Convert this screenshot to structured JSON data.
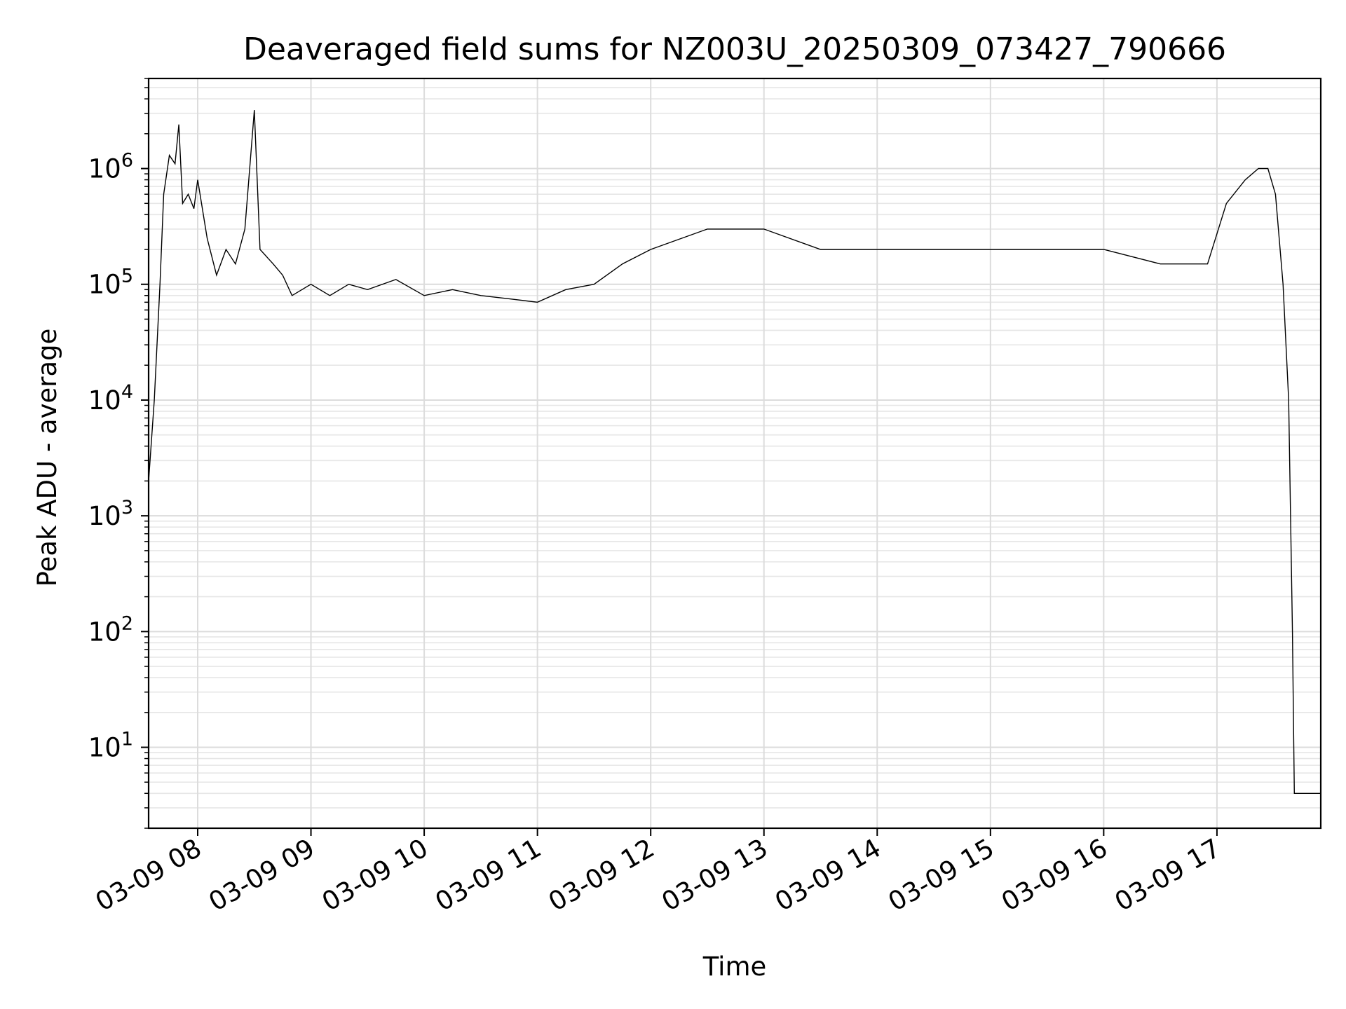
{
  "chart_data": {
    "type": "line",
    "title": "Deaveraged field sums for NZ003U_20250309_073427_790666",
    "xlabel": "Time",
    "ylabel": "Peak ADU - average",
    "yscale": "log",
    "ylim": [
      2,
      6000000
    ],
    "xlim": [
      "2025-03-09 07:34",
      "2025-03-09 17:55"
    ],
    "grid": true,
    "x_ticks": [
      {
        "t": "2025-03-09 08:00",
        "label": "03-09 08"
      },
      {
        "t": "2025-03-09 09:00",
        "label": "03-09 09"
      },
      {
        "t": "2025-03-09 10:00",
        "label": "03-09 10"
      },
      {
        "t": "2025-03-09 11:00",
        "label": "03-09 11"
      },
      {
        "t": "2025-03-09 12:00",
        "label": "03-09 12"
      },
      {
        "t": "2025-03-09 13:00",
        "label": "03-09 13"
      },
      {
        "t": "2025-03-09 14:00",
        "label": "03-09 14"
      },
      {
        "t": "2025-03-09 15:00",
        "label": "03-09 15"
      },
      {
        "t": "2025-03-09 16:00",
        "label": "03-09 16"
      },
      {
        "t": "2025-03-09 17:00",
        "label": "03-09 17"
      }
    ],
    "y_ticks": [
      {
        "value": 10,
        "base": "10",
        "exp": "1"
      },
      {
        "value": 100,
        "base": "10",
        "exp": "2"
      },
      {
        "value": 1000,
        "base": "10",
        "exp": "3"
      },
      {
        "value": 10000,
        "base": "10",
        "exp": "4"
      },
      {
        "value": 100000,
        "base": "10",
        "exp": "5"
      },
      {
        "value": 1000000,
        "base": "10",
        "exp": "6"
      }
    ],
    "series": [
      {
        "color": "#000000",
        "points": [
          [
            "2025-03-09 07:34",
            2000
          ],
          [
            "2025-03-09 07:37",
            10000
          ],
          [
            "2025-03-09 07:40",
            100000
          ],
          [
            "2025-03-09 07:42",
            600000
          ],
          [
            "2025-03-09 07:45",
            1300000
          ],
          [
            "2025-03-09 07:48",
            1100000
          ],
          [
            "2025-03-09 07:50",
            2400000
          ],
          [
            "2025-03-09 07:52",
            500000
          ],
          [
            "2025-03-09 07:55",
            600000
          ],
          [
            "2025-03-09 07:58",
            450000
          ],
          [
            "2025-03-09 08:00",
            800000
          ],
          [
            "2025-03-09 08:05",
            250000
          ],
          [
            "2025-03-09 08:10",
            120000
          ],
          [
            "2025-03-09 08:15",
            200000
          ],
          [
            "2025-03-09 08:20",
            150000
          ],
          [
            "2025-03-09 08:25",
            300000
          ],
          [
            "2025-03-09 08:30",
            3200000
          ],
          [
            "2025-03-09 08:33",
            200000
          ],
          [
            "2025-03-09 08:40",
            150000
          ],
          [
            "2025-03-09 08:45",
            120000
          ],
          [
            "2025-03-09 08:50",
            80000
          ],
          [
            "2025-03-09 09:00",
            100000
          ],
          [
            "2025-03-09 09:10",
            80000
          ],
          [
            "2025-03-09 09:20",
            100000
          ],
          [
            "2025-03-09 09:30",
            90000
          ],
          [
            "2025-03-09 09:45",
            110000
          ],
          [
            "2025-03-09 10:00",
            80000
          ],
          [
            "2025-03-09 10:15",
            90000
          ],
          [
            "2025-03-09 10:30",
            80000
          ],
          [
            "2025-03-09 10:45",
            75000
          ],
          [
            "2025-03-09 11:00",
            70000
          ],
          [
            "2025-03-09 11:15",
            90000
          ],
          [
            "2025-03-09 11:30",
            100000
          ],
          [
            "2025-03-09 11:45",
            150000
          ],
          [
            "2025-03-09 12:00",
            200000
          ],
          [
            "2025-03-09 12:30",
            300000
          ],
          [
            "2025-03-09 13:00",
            300000
          ],
          [
            "2025-03-09 13:30",
            200000
          ],
          [
            "2025-03-09 14:00",
            200000
          ],
          [
            "2025-03-09 14:30",
            200000
          ],
          [
            "2025-03-09 15:00",
            200000
          ],
          [
            "2025-03-09 15:30",
            200000
          ],
          [
            "2025-03-09 16:00",
            200000
          ],
          [
            "2025-03-09 16:30",
            150000
          ],
          [
            "2025-03-09 16:55",
            150000
          ],
          [
            "2025-03-09 17:05",
            500000
          ],
          [
            "2025-03-09 17:15",
            800000
          ],
          [
            "2025-03-09 17:22",
            1000000
          ],
          [
            "2025-03-09 17:27",
            1000000
          ],
          [
            "2025-03-09 17:31",
            600000
          ],
          [
            "2025-03-09 17:35",
            100000
          ],
          [
            "2025-03-09 17:38",
            10000
          ],
          [
            "2025-03-09 17:40",
            100
          ],
          [
            "2025-03-09 17:41",
            4
          ],
          [
            "2025-03-09 17:55",
            4
          ]
        ]
      }
    ]
  }
}
